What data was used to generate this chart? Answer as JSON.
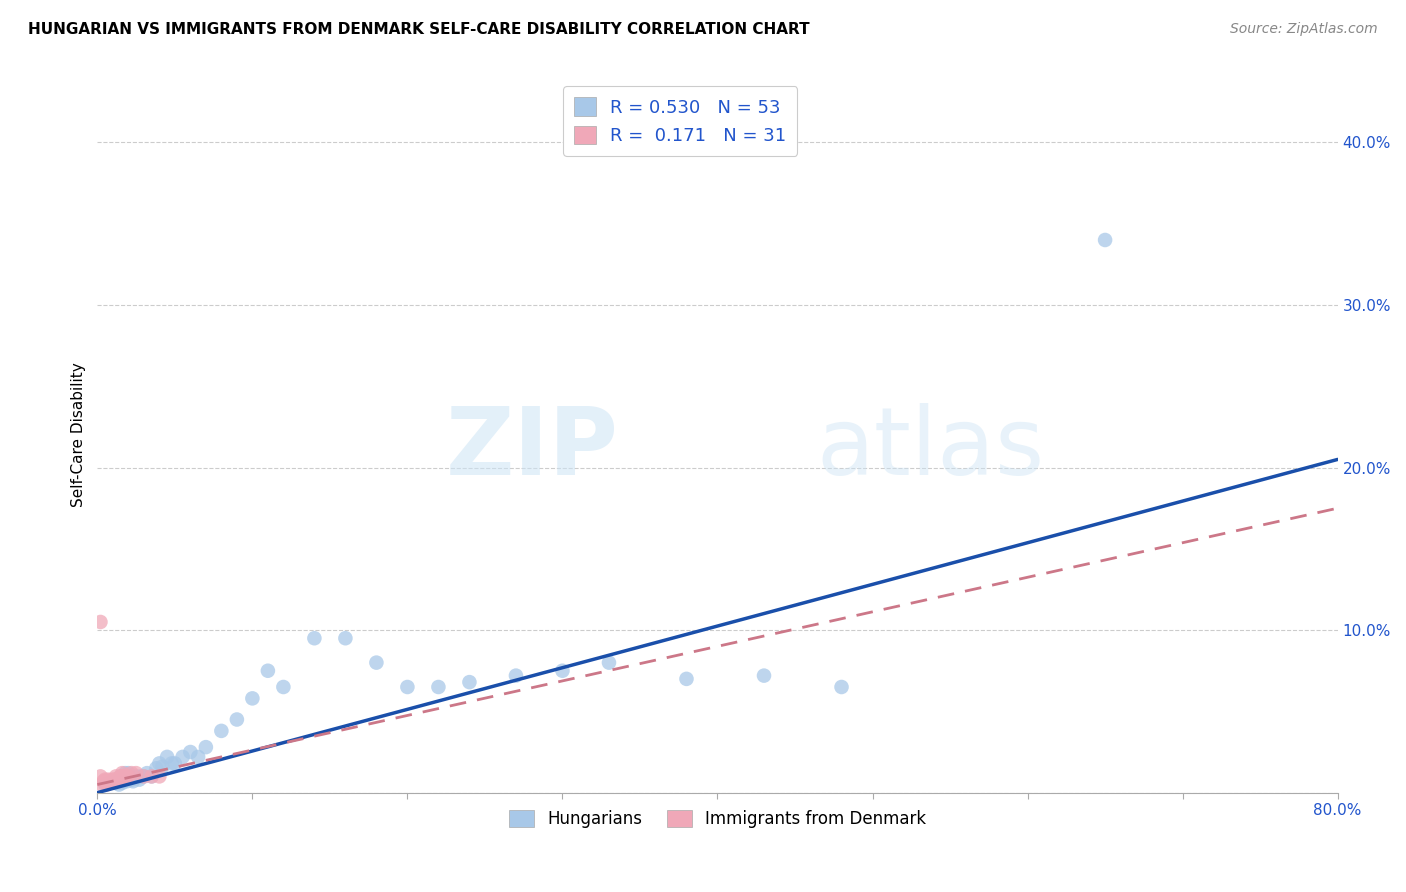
{
  "title": "HUNGARIAN VS IMMIGRANTS FROM DENMARK SELF-CARE DISABILITY CORRELATION CHART",
  "source": "Source: ZipAtlas.com",
  "ylabel": "Self-Care Disability",
  "xlim": [
    0.0,
    0.8
  ],
  "ylim": [
    0.0,
    0.44
  ],
  "xticks": [
    0.0,
    0.1,
    0.2,
    0.3,
    0.4,
    0.5,
    0.6,
    0.7,
    0.8
  ],
  "xtick_labels": [
    "0.0%",
    "",
    "",
    "",
    "",
    "",
    "",
    "",
    "80.0%"
  ],
  "yticks": [
    0.0,
    0.1,
    0.2,
    0.3,
    0.4
  ],
  "ytick_labels": [
    "",
    "10.0%",
    "20.0%",
    "30.0%",
    "40.0%"
  ],
  "blue_R": 0.53,
  "blue_N": 53,
  "pink_R": 0.171,
  "pink_N": 31,
  "blue_color": "#a8c8e8",
  "blue_line_color": "#1a4faa",
  "pink_color": "#f0a8b8",
  "pink_line_color": "#cc7788",
  "watermark_zip": "ZIP",
  "watermark_atlas": "atlas",
  "legend_label_blue": "Hungarians",
  "legend_label_pink": "Immigrants from Denmark",
  "blue_scatter_x": [
    0.005,
    0.008,
    0.01,
    0.012,
    0.013,
    0.014,
    0.015,
    0.015,
    0.016,
    0.017,
    0.018,
    0.018,
    0.019,
    0.02,
    0.02,
    0.021,
    0.022,
    0.023,
    0.025,
    0.025,
    0.027,
    0.028,
    0.03,
    0.032,
    0.035,
    0.038,
    0.04,
    0.042,
    0.045,
    0.048,
    0.05,
    0.055,
    0.06,
    0.065,
    0.07,
    0.08,
    0.09,
    0.1,
    0.11,
    0.12,
    0.14,
    0.16,
    0.18,
    0.2,
    0.22,
    0.24,
    0.27,
    0.3,
    0.33,
    0.38,
    0.43,
    0.48,
    0.65
  ],
  "blue_scatter_y": [
    0.005,
    0.006,
    0.007,
    0.006,
    0.007,
    0.005,
    0.008,
    0.01,
    0.006,
    0.007,
    0.008,
    0.012,
    0.007,
    0.008,
    0.012,
    0.008,
    0.008,
    0.007,
    0.009,
    0.01,
    0.008,
    0.01,
    0.01,
    0.012,
    0.01,
    0.015,
    0.018,
    0.016,
    0.022,
    0.018,
    0.018,
    0.022,
    0.025,
    0.022,
    0.028,
    0.038,
    0.045,
    0.058,
    0.075,
    0.065,
    0.095,
    0.095,
    0.08,
    0.065,
    0.065,
    0.068,
    0.072,
    0.075,
    0.08,
    0.07,
    0.072,
    0.065,
    0.34
  ],
  "pink_scatter_x": [
    0.002,
    0.003,
    0.004,
    0.005,
    0.006,
    0.006,
    0.007,
    0.007,
    0.008,
    0.008,
    0.009,
    0.01,
    0.01,
    0.011,
    0.012,
    0.012,
    0.013,
    0.014,
    0.015,
    0.016,
    0.016,
    0.017,
    0.018,
    0.019,
    0.02,
    0.022,
    0.025,
    0.03,
    0.035,
    0.04,
    0.002
  ],
  "pink_scatter_y": [
    0.01,
    0.005,
    0.007,
    0.008,
    0.005,
    0.007,
    0.006,
    0.008,
    0.006,
    0.007,
    0.007,
    0.007,
    0.008,
    0.008,
    0.007,
    0.01,
    0.008,
    0.008,
    0.01,
    0.01,
    0.012,
    0.01,
    0.01,
    0.01,
    0.01,
    0.012,
    0.012,
    0.01,
    0.01,
    0.01,
    0.105
  ],
  "blue_line_x": [
    0.0,
    0.8
  ],
  "blue_line_y": [
    0.0,
    0.205
  ],
  "pink_line_x": [
    0.0,
    0.8
  ],
  "pink_line_y": [
    0.005,
    0.175
  ]
}
